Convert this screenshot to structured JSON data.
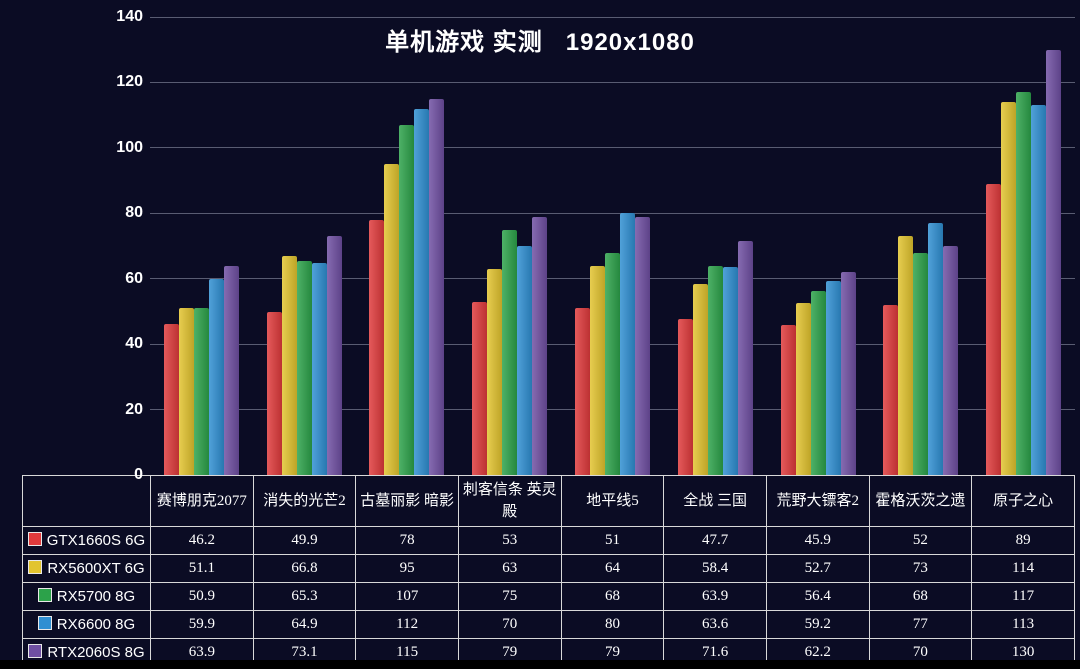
{
  "background_color": "#0b0c24",
  "chart_data": {
    "type": "bar",
    "title": "单机游戏 实测   1920x1080",
    "xlabel": "",
    "ylabel": "",
    "ylim": [
      0,
      140
    ],
    "yticks": [
      0,
      20,
      40,
      60,
      80,
      100,
      120,
      140
    ],
    "grid": true,
    "legend_position": "table-left",
    "categories": [
      "赛博朋克2077",
      "消失的光芒2",
      "古墓丽影 暗影",
      "刺客信条 英灵殿",
      "地平线5",
      "全战 三国",
      "荒野大镖客2",
      "霍格沃茨之遗",
      "原子之心"
    ],
    "series": [
      {
        "name": "GTX1660S 6G",
        "color": "#e03a3c",
        "values": [
          46.2,
          49.9,
          78,
          53,
          51,
          47.7,
          45.9,
          52,
          89
        ]
      },
      {
        "name": "RX5600XT 6G",
        "color": "#e2c42e",
        "values": [
          51.1,
          66.8,
          95,
          63,
          64,
          58.4,
          52.7,
          73,
          114
        ]
      },
      {
        "name": "RX5700 8G",
        "color": "#2ca24a",
        "values": [
          50.9,
          65.3,
          107,
          75,
          68,
          63.9,
          56.4,
          68,
          117
        ]
      },
      {
        "name": "RX6600 8G",
        "color": "#2f8fd2",
        "values": [
          59.9,
          64.9,
          112,
          70,
          80,
          63.6,
          59.2,
          77,
          113
        ]
      },
      {
        "name": "RTX2060S 8G",
        "color": "#6f4fa2",
        "values": [
          63.9,
          73.1,
          115,
          79,
          79,
          71.6,
          62.2,
          70,
          130
        ]
      }
    ]
  }
}
